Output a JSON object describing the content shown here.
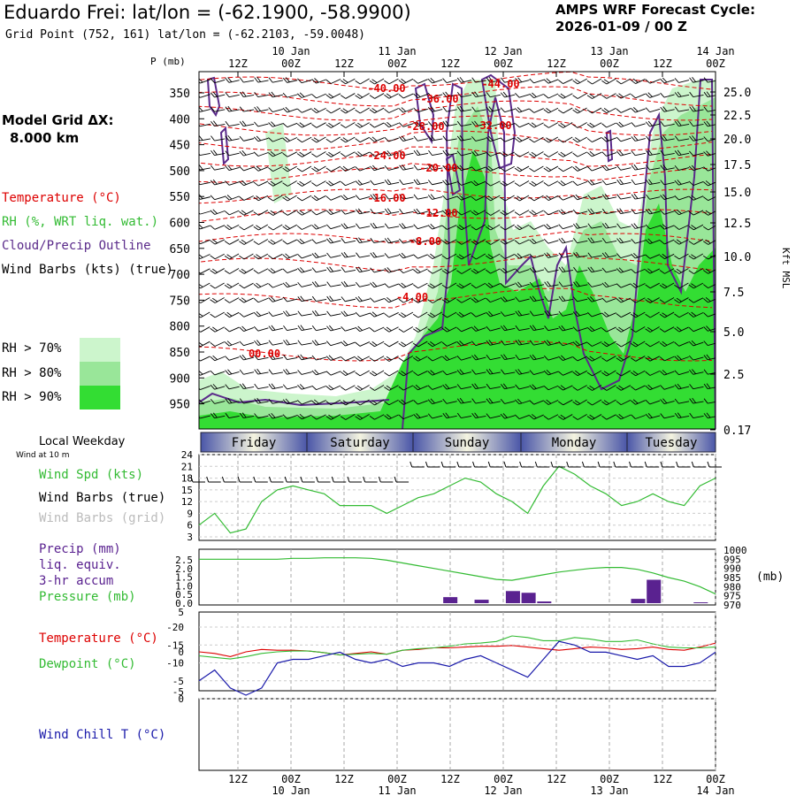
{
  "header": {
    "title": "Eduardo Frei:  lat/lon = (-62.1900, -58.9900)",
    "grid_point": "Grid Point (752, 161) lat/lon = (-62.2103, -59.0048)",
    "cycle_line1": "AMPS WRF Forecast Cycle:",
    "cycle_line2": "2026-01-09 / 00  Z",
    "model_grid_line1": "Model Grid ΔX:",
    "model_grid_line2": "8.000 km"
  },
  "colors": {
    "temperature": "#dd0000",
    "rh": "#33bb33",
    "cloud": "#5a2a8a",
    "precip": "#5a2290",
    "pressure": "#33bb33",
    "windchill": "#1a1aaa",
    "rh70": "#ccf5cc",
    "rh80": "#99e699",
    "rh90": "#33dd33"
  },
  "time_axis": {
    "top_hours": [
      "12Z",
      "00Z",
      "12Z",
      "00Z",
      "12Z",
      "00Z",
      "12Z",
      "00Z",
      "12Z",
      "00Z"
    ],
    "top_dates": [
      "10 Jan",
      "11 Jan",
      "12 Jan",
      "13 Jan",
      "14 Jan"
    ],
    "bottom_hours": [
      "12Z",
      "00Z",
      "12Z",
      "00Z",
      "12Z",
      "00Z",
      "12Z",
      "00Z",
      "12Z",
      "00Z"
    ],
    "bottom_dates": [
      "10 Jan",
      "11 Jan",
      "12 Jan",
      "13 Jan",
      "14 Jan"
    ]
  },
  "weekday_bar": {
    "label": "Local Weekday",
    "days": [
      "Friday",
      "Saturday",
      "Sunday",
      "Monday",
      "Tuesday"
    ]
  },
  "legend_main": {
    "temperature": "Temperature (°C)",
    "rh": "RH (%, WRT liq. wat.)",
    "cloud": "Cloud/Precip Outline",
    "wind": "Wind Barbs (kts) (true)",
    "rh70": "RH > 70%",
    "rh80": "RH > 80%",
    "rh90": "RH > 90%"
  },
  "legend_wind": {
    "wind10": "Wind at 10 m",
    "spd": "Wind Spd (kts)",
    "true": "Wind Barbs (true)",
    "grid": "Wind Barbs (grid)"
  },
  "legend_precip": {
    "l1": "Precip (mm)",
    "l2": "liq. equiv.",
    "l3": "3-hr accum",
    "l4": "Pressure (mb)"
  },
  "legend_temp": {
    "t": "Temperature (°C)",
    "d": "Dewpoint (°C)"
  },
  "legend_chill": {
    "c": "Wind Chill T (°C)"
  },
  "chart_data": [
    {
      "type": "heatmap",
      "name": "cross-section",
      "left_axis_label": "P (mb)",
      "right_axis_label": "Kft MSL",
      "p_ticks": [
        "350",
        "400",
        "450",
        "500",
        "550",
        "600",
        "650",
        "700",
        "750",
        "800",
        "850",
        "900",
        "950"
      ],
      "kft_ticks": [
        "25.0",
        "22.5",
        "20.0",
        "17.5",
        "15.0",
        "12.5",
        "10.0",
        "7.5",
        "5.0",
        "2.5",
        "0.17"
      ],
      "temperature_labels": [
        "-44.00",
        "-40.00",
        "-36.00",
        "-32.00",
        "-28.00",
        "-24.00",
        "-20.00",
        "-16.00",
        "-12.00",
        "-8.00",
        "-4.00",
        "00.00"
      ]
    },
    {
      "type": "line",
      "name": "wind speed 10 m",
      "y_ticks": [
        "24",
        "21",
        "18",
        "15",
        "12",
        "9",
        "6",
        "3"
      ],
      "ylim": [
        3,
        24
      ],
      "values": [
        6,
        9,
        4,
        5,
        12,
        15,
        16,
        15,
        14,
        11,
        11,
        11,
        9,
        11,
        13,
        14,
        16,
        18,
        17,
        14,
        12,
        9,
        16,
        21,
        19,
        16,
        14,
        11,
        12,
        14,
        12,
        11,
        16,
        18
      ]
    },
    {
      "type": "bar",
      "name": "precip and pressure",
      "left_ticks": [
        "2.5",
        "2.0",
        "1.5",
        "1.0",
        "0.5",
        "0.0"
      ],
      "right_ticks": [
        "1000",
        "995",
        "990",
        "985",
        "980",
        "975",
        "970"
      ],
      "right_unit": "(mb)",
      "ylim": [
        0,
        2.5
      ],
      "precip_values": [
        0,
        0,
        0,
        0,
        0,
        0,
        0,
        0,
        0,
        0,
        0,
        0,
        0,
        0,
        0,
        0,
        0.35,
        0,
        0.2,
        0,
        0.7,
        0.6,
        0.1,
        0,
        0,
        0,
        0,
        0,
        0.25,
        1.35,
        0,
        0,
        0.05,
        0
      ],
      "pressure_values": [
        995,
        995,
        995,
        995,
        995,
        995,
        995.5,
        995.5,
        995.8,
        995.8,
        995.8,
        995.5,
        994.5,
        993,
        991.5,
        990,
        988.5,
        987,
        985.5,
        984,
        983.5,
        985,
        986.5,
        988,
        989,
        990,
        990.5,
        990.5,
        989.5,
        987.5,
        985,
        983,
        980,
        976
      ]
    },
    {
      "type": "line",
      "name": "temperature and dewpoint",
      "y_ticks": [
        "5",
        "0",
        "-5"
      ],
      "ylim": [
        -5,
        5
      ],
      "temperature": [
        0,
        -0.2,
        -0.6,
        0,
        0.3,
        0.2,
        0.2,
        0.1,
        -0.1,
        -0.4,
        -0.2,
        0,
        -0.3,
        0.2,
        0.3,
        0.5,
        0.5,
        0.6,
        0.7,
        0.7,
        0.8,
        0.6,
        0.4,
        0.2,
        0.4,
        0.6,
        0.5,
        0.3,
        0.4,
        0.6,
        0.3,
        0.2,
        0.6,
        1.1
      ],
      "dewpoint": [
        -0.5,
        -0.7,
        -0.9,
        -0.6,
        -0.2,
        0,
        0.1,
        0.1,
        -0.1,
        -0.4,
        -0.3,
        -0.2,
        -0.3,
        0.2,
        0.4,
        0.5,
        0.7,
        1.0,
        1.1,
        1.3,
        2.0,
        1.8,
        1.4,
        1.4,
        1.8,
        1.6,
        1.3,
        1.3,
        1.5,
        1.0,
        0.6,
        0.5,
        0.5,
        0.6
      ]
    },
    {
      "type": "line",
      "name": "wind chill",
      "y_ticks": [
        "0",
        "-5",
        "-10",
        "-15",
        "-20"
      ],
      "ylim": [
        -20,
        0
      ],
      "values": [
        -5,
        -8,
        -3,
        -1,
        -3,
        -10,
        -11,
        -11,
        -12,
        -13,
        -11,
        -10,
        -11,
        -9,
        -10,
        -10,
        -9,
        -11,
        -12,
        -10,
        -8,
        -6,
        -11,
        -16,
        -15,
        -13,
        -13,
        -12,
        -11,
        -12,
        -9,
        -9,
        -10,
        -13
      ]
    }
  ]
}
